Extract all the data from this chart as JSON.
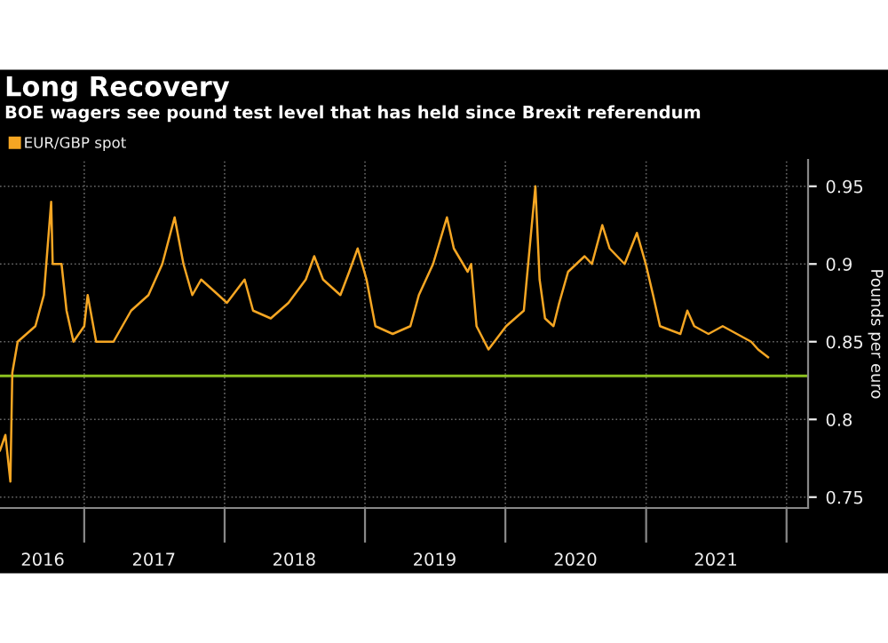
{
  "chart_data": {
    "type": "line",
    "title": "Long Recovery",
    "subtitle": "BOE wagers see pound test level that has held since Brexit referendum",
    "ylabel": "Pounds per euro",
    "series": [
      {
        "name": "EUR/GBP spot",
        "color": "#f5a623",
        "x": [
          "2016-05-27",
          "2016-06-10",
          "2016-06-23",
          "2016-06-28",
          "2016-07-12",
          "2016-08-04",
          "2016-08-27",
          "2016-09-18",
          "2016-10-07",
          "2016-10-11",
          "2016-11-03",
          "2016-11-16",
          "2016-12-04",
          "2017-01-01",
          "2017-01-10",
          "2017-02-01",
          "2017-02-24",
          "2017-03-18",
          "2017-04-10",
          "2017-05-03",
          "2017-06-17",
          "2017-07-23",
          "2017-08-24",
          "2017-09-16",
          "2017-10-09",
          "2017-11-01",
          "2017-12-16",
          "2018-01-07",
          "2018-02-22",
          "2018-03-16",
          "2018-05-01",
          "2018-06-16",
          "2018-07-31",
          "2018-08-22",
          "2018-09-14",
          "2018-10-29",
          "2018-11-21",
          "2018-12-13",
          "2019-01-05",
          "2019-01-28",
          "2019-03-14",
          "2019-04-29",
          "2019-05-21",
          "2019-06-27",
          "2019-08-02",
          "2019-08-20",
          "2019-09-25",
          "2019-10-04",
          "2019-10-18",
          "2019-11-18",
          "2020-01-03",
          "2020-02-18",
          "2020-03-19",
          "2020-03-30",
          "2020-04-13",
          "2020-05-05",
          "2020-05-20",
          "2020-06-12",
          "2020-07-25",
          "2020-08-13",
          "2020-09-09",
          "2020-09-28",
          "2020-11-06",
          "2020-12-08",
          "2020-12-31",
          "2021-01-19",
          "2021-02-06",
          "2021-03-31",
          "2021-04-18",
          "2021-05-06",
          "2021-06-12",
          "2021-07-19",
          "2021-08-25",
          "2021-10-01",
          "2021-10-19",
          "2021-11-14"
        ],
        "values": [
          0.78,
          0.79,
          0.76,
          0.83,
          0.85,
          0.855,
          0.86,
          0.88,
          0.94,
          0.9,
          0.9,
          0.87,
          0.85,
          0.86,
          0.88,
          0.85,
          0.85,
          0.85,
          0.86,
          0.87,
          0.88,
          0.9,
          0.93,
          0.9,
          0.88,
          0.89,
          0.88,
          0.875,
          0.89,
          0.87,
          0.865,
          0.875,
          0.89,
          0.905,
          0.89,
          0.88,
          0.895,
          0.91,
          0.89,
          0.86,
          0.855,
          0.86,
          0.88,
          0.9,
          0.93,
          0.91,
          0.895,
          0.9,
          0.86,
          0.845,
          0.86,
          0.87,
          0.95,
          0.89,
          0.865,
          0.86,
          0.875,
          0.895,
          0.905,
          0.9,
          0.925,
          0.91,
          0.9,
          0.92,
          0.9,
          0.88,
          0.86,
          0.855,
          0.87,
          0.86,
          0.855,
          0.86,
          0.855,
          0.85,
          0.845,
          0.84
        ]
      }
    ],
    "ref_lines": [
      {
        "axis": "y",
        "value": 0.828,
        "color": "#8dc21f"
      }
    ],
    "xlim": [
      "2016-05-27",
      "2022-02-26"
    ],
    "xticks": [
      {
        "value": "2016-09-15",
        "label": "2016"
      },
      {
        "value": "2017-01-01",
        "label": null
      },
      {
        "value": "2017-07-01",
        "label": "2017"
      },
      {
        "value": "2018-01-01",
        "label": null
      },
      {
        "value": "2018-07-01",
        "label": "2018"
      },
      {
        "value": "2019-01-01",
        "label": null
      },
      {
        "value": "2019-07-01",
        "label": "2019"
      },
      {
        "value": "2020-01-01",
        "label": null
      },
      {
        "value": "2020-07-01",
        "label": "2020"
      },
      {
        "value": "2021-01-01",
        "label": null
      },
      {
        "value": "2021-07-01",
        "label": "2021"
      },
      {
        "value": "2022-01-01",
        "label": null
      }
    ],
    "ylim": [
      0.743,
      0.967
    ],
    "yticks": [
      0.75,
      0.8,
      0.85,
      0.9,
      0.95
    ],
    "grid": true,
    "legend": "top left",
    "marker": "none",
    "line_style": "solid"
  }
}
